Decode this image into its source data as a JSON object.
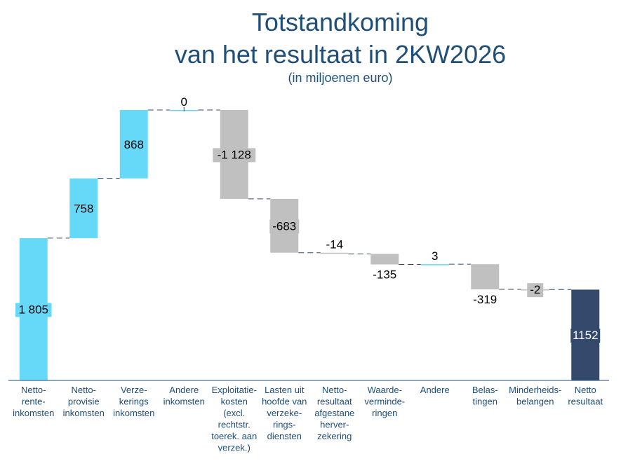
{
  "title_line_1": "Totstandkoming",
  "title_line_2": "van het resultaat in 2KW2026",
  "subtitle": "(in miljoenen euro)",
  "colors": {
    "increase": "#66d9f9",
    "decrease": "#c0c0c0",
    "total": "#34496b",
    "title": "#1f4e79",
    "axis": "#1f4e79"
  },
  "chart_data": {
    "type": "bar",
    "subtype": "waterfall",
    "categories": [
      [
        "Netto-",
        "rente-",
        "inkomsten"
      ],
      [
        "Netto-",
        "provisie",
        "inkomsten"
      ],
      [
        "Verze-",
        "kerings",
        "inkomsten"
      ],
      [
        "Andere",
        "inkomsten"
      ],
      [
        "Exploitatie-",
        "kosten",
        "(excl.",
        "rechtstr.",
        "toerek. aan",
        "verzek.)"
      ],
      [
        "Lasten uit",
        "hoofde van",
        "verzeke-",
        "rings-",
        "diensten"
      ],
      [
        "Netto-",
        "resultaat",
        "afgestane",
        "herver-",
        "zekering"
      ],
      [
        "Waarde-",
        "verminde-",
        "ringen"
      ],
      [
        "Andere"
      ],
      [
        "Belas-",
        "tingen"
      ],
      [
        "Minderheids-",
        "belangen"
      ],
      [
        "Netto",
        "resultaat"
      ]
    ],
    "values": [
      1805,
      758,
      868,
      0,
      -1128,
      -683,
      -14,
      -135,
      3,
      -319,
      -2,
      1152
    ],
    "value_labels": [
      "1 805",
      "758",
      "868",
      "0",
      "-1 128",
      "-683",
      "-14",
      "-135",
      "3",
      "-319",
      "-2",
      "1152"
    ],
    "kinds": [
      "increase",
      "increase",
      "increase",
      "increase",
      "decrease",
      "decrease",
      "decrease",
      "decrease",
      "increase",
      "decrease",
      "decrease",
      "total"
    ],
    "ylim": [
      0,
      3431
    ],
    "grid": false,
    "legend": "none",
    "xlabel": "",
    "ylabel": ""
  }
}
